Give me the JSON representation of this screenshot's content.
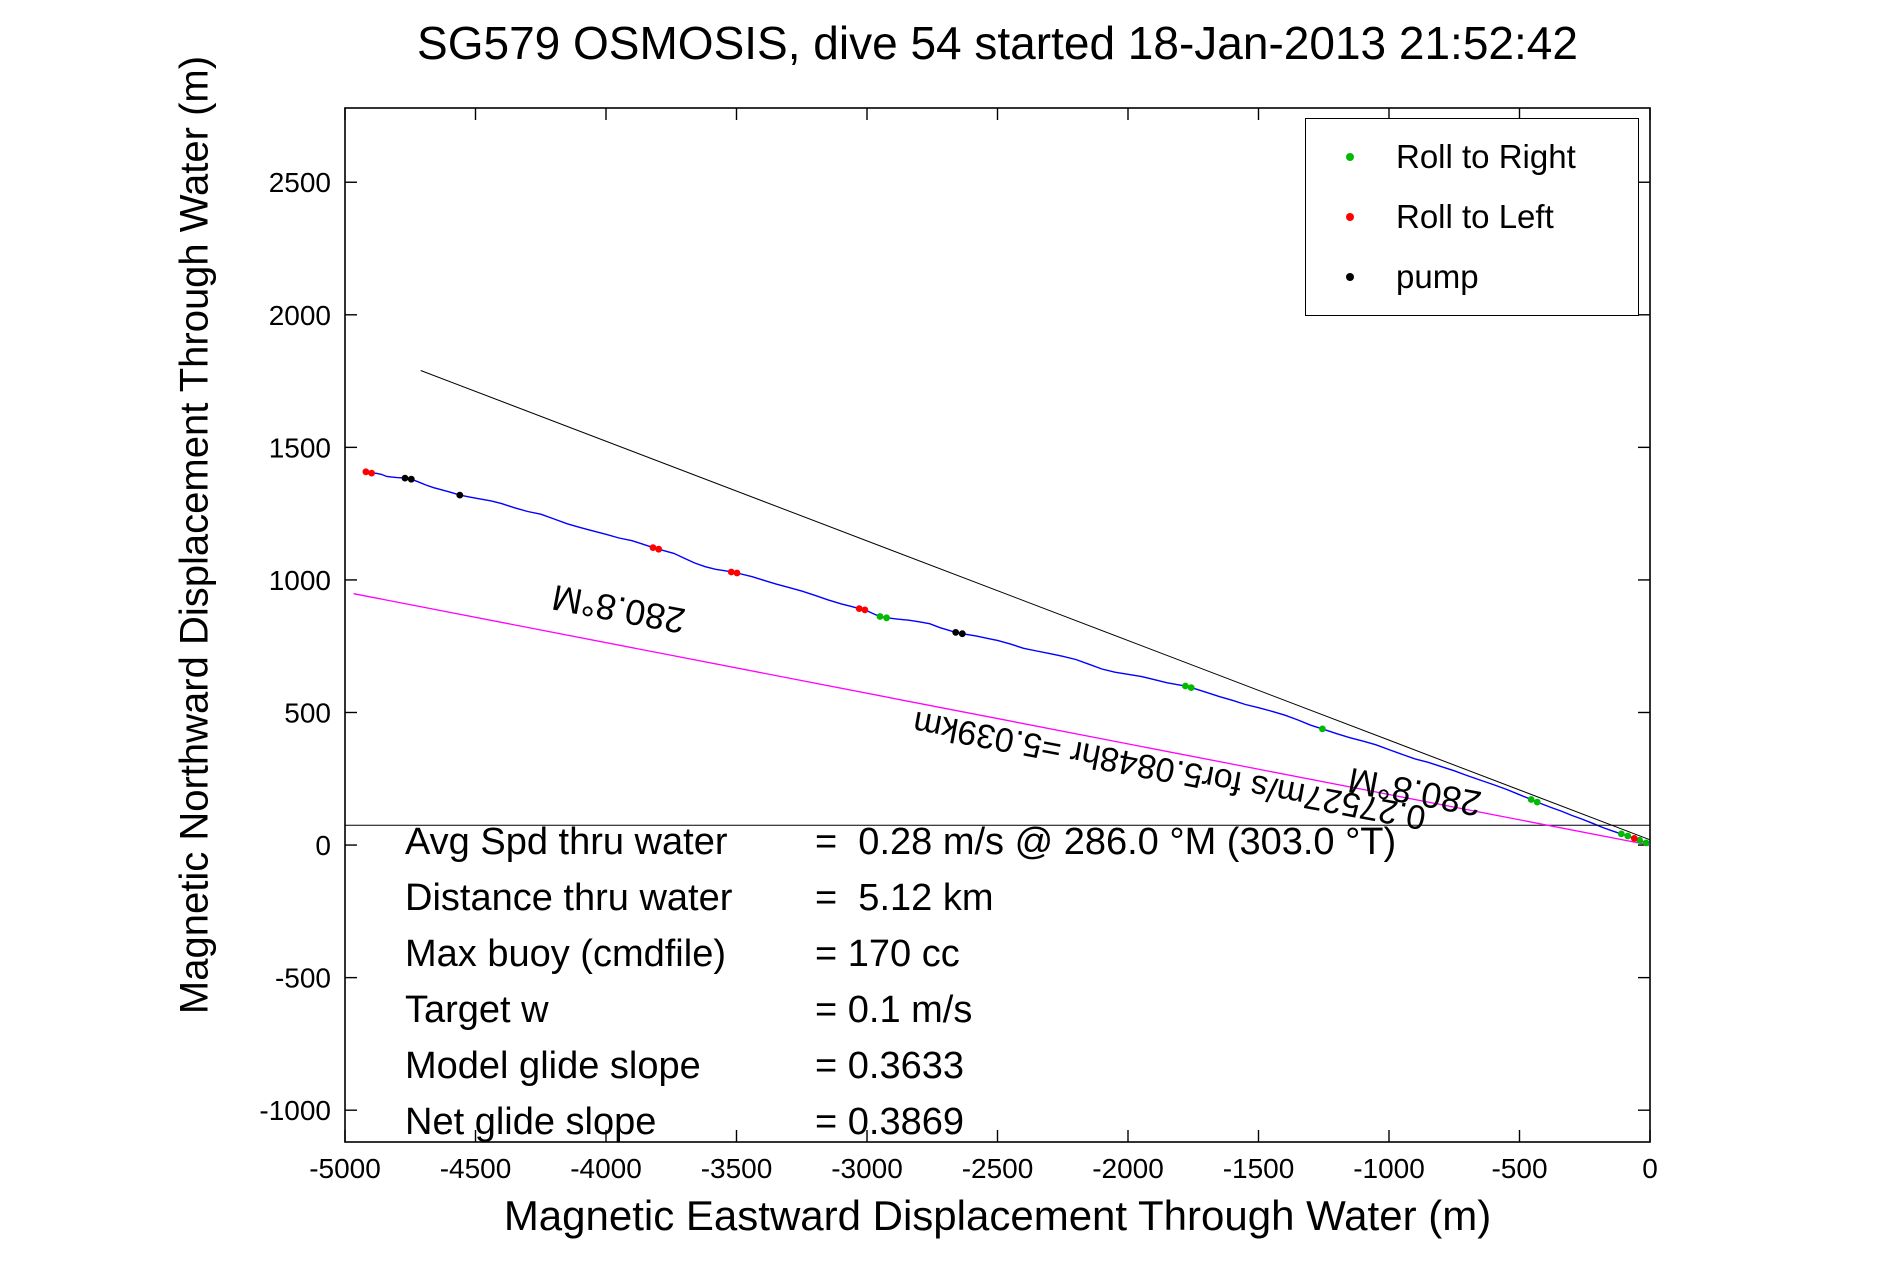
{
  "chart_data": {
    "type": "line",
    "title": "SG579 OSMOSIS, dive 54 started 18-Jan-2013 21:52:42",
    "xlabel": "Magnetic Eastward Displacement Through Water (m)",
    "ylabel": "Magnetic Northward Displacement Through Water (m)",
    "xlim": [
      -5000,
      0
    ],
    "ylim": [
      -1120,
      2780
    ],
    "xticks": [
      -5000,
      -4500,
      -4000,
      -3500,
      -3000,
      -2500,
      -2000,
      -1500,
      -1000,
      -500,
      0
    ],
    "yticks": [
      -1000,
      -500,
      0,
      500,
      1000,
      1500,
      2000,
      2500
    ],
    "grid": false,
    "legend_position": "top-right",
    "legend_items": [
      {
        "label": "Roll to Right",
        "color": "#00bb00"
      },
      {
        "label": "Roll to Left",
        "color": "#ff0000"
      },
      {
        "label": "pump",
        "color": "#000000"
      }
    ],
    "series": [
      {
        "name": "dive-track",
        "color": "#0000ff",
        "width": 1.4,
        "points": [
          [
            -4920,
            1408
          ],
          [
            -4898,
            1403
          ],
          [
            -4880,
            1402
          ],
          [
            -4860,
            1398
          ],
          [
            -4840,
            1390
          ],
          [
            -4820,
            1388
          ],
          [
            -4800,
            1386
          ],
          [
            -4770,
            1384
          ],
          [
            -4746,
            1380
          ],
          [
            -4720,
            1370
          ],
          [
            -4690,
            1358
          ],
          [
            -4660,
            1348
          ],
          [
            -4630,
            1340
          ],
          [
            -4600,
            1332
          ],
          [
            -4560,
            1320
          ],
          [
            -4520,
            1312
          ],
          [
            -4480,
            1305
          ],
          [
            -4440,
            1298
          ],
          [
            -4400,
            1288
          ],
          [
            -4350,
            1272
          ],
          [
            -4300,
            1258
          ],
          [
            -4250,
            1248
          ],
          [
            -4200,
            1230
          ],
          [
            -4150,
            1212
          ],
          [
            -4100,
            1198
          ],
          [
            -4050,
            1185
          ],
          [
            -4000,
            1172
          ],
          [
            -3950,
            1158
          ],
          [
            -3900,
            1148
          ],
          [
            -3860,
            1135
          ],
          [
            -3820,
            1122
          ],
          [
            -3798,
            1116
          ],
          [
            -3740,
            1100
          ],
          [
            -3700,
            1082
          ],
          [
            -3660,
            1064
          ],
          [
            -3620,
            1050
          ],
          [
            -3580,
            1040
          ],
          [
            -3540,
            1034
          ],
          [
            -3520,
            1030
          ],
          [
            -3498,
            1026
          ],
          [
            -3440,
            1012
          ],
          [
            -3400,
            1000
          ],
          [
            -3350,
            985
          ],
          [
            -3300,
            972
          ],
          [
            -3250,
            958
          ],
          [
            -3200,
            942
          ],
          [
            -3150,
            925
          ],
          [
            -3100,
            910
          ],
          [
            -3060,
            900
          ],
          [
            -3030,
            892
          ],
          [
            -3008,
            887
          ],
          [
            -2970,
            870
          ],
          [
            -2950,
            862
          ],
          [
            -2925,
            857
          ],
          [
            -2880,
            852
          ],
          [
            -2840,
            848
          ],
          [
            -2800,
            842
          ],
          [
            -2760,
            835
          ],
          [
            -2720,
            820
          ],
          [
            -2680,
            808
          ],
          [
            -2660,
            802
          ],
          [
            -2635,
            797
          ],
          [
            -2580,
            788
          ],
          [
            -2540,
            780
          ],
          [
            -2500,
            772
          ],
          [
            -2450,
            758
          ],
          [
            -2400,
            742
          ],
          [
            -2350,
            732
          ],
          [
            -2300,
            722
          ],
          [
            -2250,
            712
          ],
          [
            -2200,
            700
          ],
          [
            -2150,
            682
          ],
          [
            -2100,
            664
          ],
          [
            -2050,
            652
          ],
          [
            -2000,
            644
          ],
          [
            -1950,
            636
          ],
          [
            -1900,
            624
          ],
          [
            -1850,
            612
          ],
          [
            -1780,
            600
          ],
          [
            -1758,
            594
          ],
          [
            -1700,
            576
          ],
          [
            -1650,
            560
          ],
          [
            -1600,
            546
          ],
          [
            -1550,
            530
          ],
          [
            -1500,
            518
          ],
          [
            -1450,
            505
          ],
          [
            -1400,
            490
          ],
          [
            -1350,
            472
          ],
          [
            -1300,
            452
          ],
          [
            -1255,
            438
          ],
          [
            -1200,
            420
          ],
          [
            -1150,
            405
          ],
          [
            -1100,
            392
          ],
          [
            -1050,
            378
          ],
          [
            -1000,
            360
          ],
          [
            -950,
            342
          ],
          [
            -900,
            325
          ],
          [
            -850,
            312
          ],
          [
            -800,
            296
          ],
          [
            -750,
            280
          ],
          [
            -700,
            262
          ],
          [
            -650,
            245
          ],
          [
            -600,
            228
          ],
          [
            -550,
            210
          ],
          [
            -500,
            190
          ],
          [
            -455,
            172
          ],
          [
            -432,
            162
          ],
          [
            -380,
            142
          ],
          [
            -340,
            128
          ],
          [
            -300,
            112
          ],
          [
            -260,
            98
          ],
          [
            -220,
            82
          ],
          [
            -180,
            66
          ],
          [
            -140,
            52
          ],
          [
            -110,
            42
          ],
          [
            -85,
            34
          ],
          [
            -60,
            25
          ],
          [
            -40,
            18
          ],
          [
            -15,
            8
          ],
          [
            0,
            5
          ]
        ]
      },
      {
        "name": "bearing-line",
        "color": "#000000",
        "width": 1,
        "points": [
          [
            -4710,
            1790
          ],
          [
            0,
            20
          ]
        ]
      },
      {
        "name": "horizontal-reference-line",
        "color": "#000000",
        "width": 1,
        "points": [
          [
            -5000,
            75
          ],
          [
            0,
            75
          ]
        ]
      },
      {
        "name": "avg-speed-line",
        "color": "#ff00ff",
        "width": 1.3,
        "points": [
          [
            -4967,
            948
          ],
          [
            0,
            0
          ]
        ]
      }
    ],
    "markers": [
      {
        "name": "roll-to-right",
        "color": "#00bb00",
        "points": [
          [
            -2950,
            862
          ],
          [
            -2925,
            857
          ],
          [
            -1780,
            600
          ],
          [
            -1758,
            594
          ],
          [
            -1255,
            438
          ],
          [
            -455,
            172
          ],
          [
            -432,
            162
          ],
          [
            -110,
            42
          ],
          [
            -85,
            34
          ],
          [
            -40,
            18
          ],
          [
            -15,
            8
          ]
        ]
      },
      {
        "name": "roll-to-left",
        "color": "#ff0000",
        "points": [
          [
            -4920,
            1408
          ],
          [
            -4898,
            1403
          ],
          [
            -3820,
            1122
          ],
          [
            -3798,
            1116
          ],
          [
            -3520,
            1030
          ],
          [
            -3498,
            1026
          ],
          [
            -3030,
            892
          ],
          [
            -3008,
            887
          ],
          [
            -60,
            25
          ]
        ]
      },
      {
        "name": "pump",
        "color": "#000000",
        "points": [
          [
            -4770,
            1384
          ],
          [
            -4746,
            1380
          ],
          [
            -4560,
            1320
          ],
          [
            -2660,
            802
          ],
          [
            -2635,
            797
          ]
        ]
      }
    ],
    "annotations": [
      {
        "name": "bearing-label-upper",
        "text": "280.8°M",
        "x": -3950,
        "y": 900,
        "rotation": 190.6,
        "size": 36
      },
      {
        "name": "speed-distance-label",
        "text": "0.27527m/s for5.0848hr =5.039km",
        "x": -1840,
        "y": 290,
        "rotation": 190.6,
        "size": 34
      },
      {
        "name": "bearing-label-lower",
        "text": "280.8°M",
        "x": -900,
        "y": 210,
        "rotation": 190.6,
        "size": 36
      }
    ],
    "stats_rows": [
      {
        "label": "Avg Spd thru water",
        "value": "=  0.28 m/s @ 286.0 °M (303.0 °T)"
      },
      {
        "label": "Distance thru water",
        "value": "=  5.12 km"
      },
      {
        "label": "Max buoy (cmdfile)",
        "value": "= 170 cc"
      },
      {
        "label": "Target w",
        "value": "= 0.1 m/s"
      },
      {
        "label": "Model glide slope",
        "value": "= 0.3633"
      },
      {
        "label": "Net glide slope",
        "value": "= 0.3869"
      }
    ]
  }
}
